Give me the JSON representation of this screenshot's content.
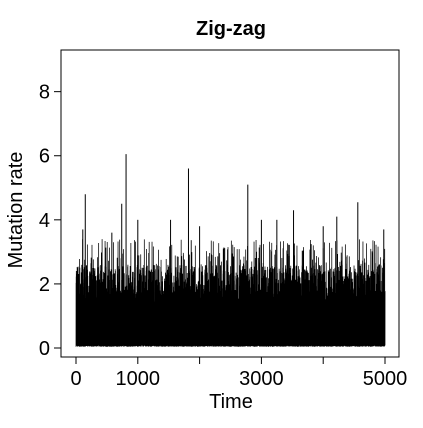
{
  "chart_data": {
    "type": "line",
    "title": "Zig-zag",
    "xlabel": "Time",
    "ylabel": "Mutation rate",
    "xlim": [
      0,
      5000
    ],
    "ylim": [
      0,
      9.3
    ],
    "x_ticks": [
      0,
      1000,
      2000,
      3000,
      4000,
      5000
    ],
    "x_tick_labels": [
      "0",
      "1000",
      "",
      "3000",
      "",
      "5000"
    ],
    "y_ticks": [
      0,
      2,
      4,
      6,
      8
    ],
    "y_tick_labels": [
      "0",
      "2",
      "4",
      "6",
      "8"
    ],
    "grid": false,
    "legend": "none",
    "series_color": "#000000",
    "series": [
      {
        "x": [
          0,
          110,
          150,
          580,
          740,
          810,
          1000,
          1530,
          1820,
          2000,
          2780,
          3000,
          3250,
          3520,
          4000,
          4220,
          4560,
          4980
        ],
        "y": [
          0.05,
          3.7,
          4.8,
          3.6,
          4.5,
          6.05,
          4.0,
          4.0,
          5.6,
          3.8,
          5.1,
          4.0,
          4.0,
          4.3,
          3.8,
          4.1,
          4.55,
          3.7
        ]
      }
    ]
  }
}
